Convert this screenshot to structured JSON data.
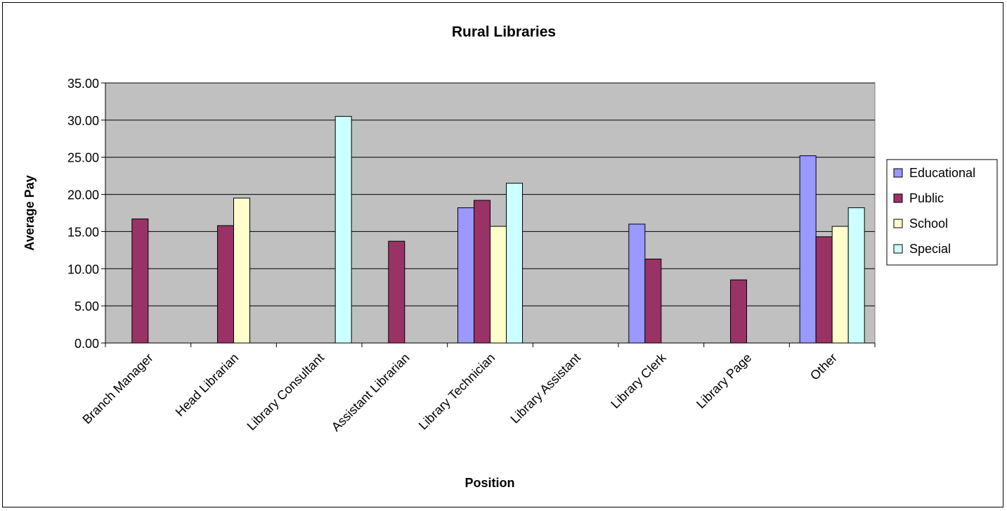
{
  "chart_data": {
    "type": "bar",
    "title": "Rural Libraries",
    "xlabel": "Position",
    "ylabel": "Average Pay",
    "ylim": [
      0,
      35
    ],
    "yticks": [
      "0.00",
      "5.00",
      "10.00",
      "15.00",
      "20.00",
      "25.00",
      "30.00",
      "35.00"
    ],
    "grid": true,
    "legend_position": "right",
    "categories": [
      "Branch Manager",
      "Head Librarian",
      "Library Consultant",
      "Assistant Librarian",
      "Library Technician",
      "Library Assistant",
      "Library Clerk",
      "Library Page",
      "Other"
    ],
    "series": [
      {
        "name": "Educational",
        "color": "#9999ff",
        "values": [
          null,
          null,
          null,
          null,
          18.2,
          null,
          16.0,
          null,
          25.2
        ]
      },
      {
        "name": "Public",
        "color": "#993366",
        "values": [
          16.7,
          15.8,
          null,
          13.7,
          19.2,
          null,
          11.3,
          8.5,
          14.3
        ]
      },
      {
        "name": "School",
        "color": "#ffffcc",
        "values": [
          null,
          19.5,
          null,
          null,
          15.7,
          null,
          null,
          null,
          15.7
        ]
      },
      {
        "name": "Special",
        "color": "#ccffff",
        "values": [
          null,
          null,
          30.5,
          null,
          21.5,
          null,
          null,
          null,
          18.2
        ]
      }
    ],
    "plot_background": "#c0c0c0"
  }
}
